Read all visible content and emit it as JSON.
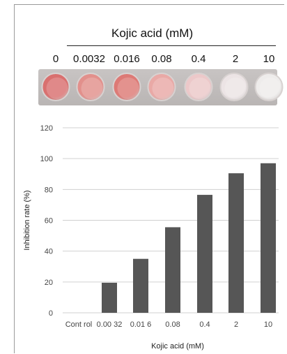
{
  "header": {
    "title": "Kojic acid (mM)",
    "concentrations": [
      "0",
      "0.0032",
      "0.016",
      "0.08",
      "0.4",
      "2",
      "10"
    ]
  },
  "plate": {
    "well_colors": [
      "#d9706f",
      "#e2908c",
      "#dd7a76",
      "#e9a9a6",
      "#ecc8c9",
      "#ece4e5",
      "#eeeceb"
    ]
  },
  "colors": {
    "bar": "#565656",
    "grid": "#d0d0d0",
    "axis_text": "#444444"
  },
  "chart_data": {
    "type": "bar",
    "categories": [
      "Control",
      "0.0032",
      "0.016",
      "0.08",
      "0.4",
      "2",
      "10"
    ],
    "tick_labels": [
      "Cont rol",
      "0.00 32",
      "0.01 6",
      "0.08",
      "0.4",
      "2",
      "10"
    ],
    "values": [
      0,
      19.5,
      35,
      55.5,
      76.5,
      90.5,
      97
    ],
    "yticks": [
      0,
      20,
      40,
      60,
      80,
      100,
      120
    ],
    "ylim": [
      0,
      120
    ],
    "xlabel": "Kojic acid (mM)",
    "ylabel": "Inhibition rate (%)",
    "grid": true
  }
}
